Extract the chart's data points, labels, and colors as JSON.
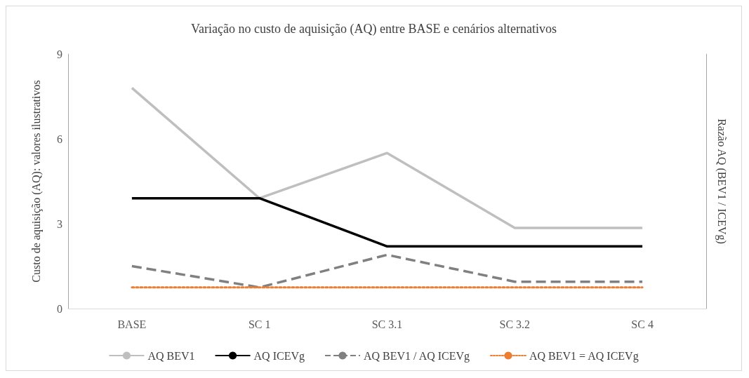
{
  "chart_data": {
    "type": "line",
    "title": "Variação no custo de aquisição (AQ) entre BASE e cenários alternativos",
    "ylabel": "Custo de aquisição (AQ): valores ilustrativos",
    "y2label": "Razão AQ (BEV1 / ICEVg)",
    "categories": [
      "BASE",
      "SC 1",
      "SC 3.1",
      "SC 3.2",
      "SC 4"
    ],
    "series": [
      {
        "name": "AQ BEV1",
        "color": "#bfbfbf",
        "line_style": "solid",
        "values": [
          7.8,
          3.9,
          5.5,
          2.85,
          2.85
        ]
      },
      {
        "name": "AQ ICEVg",
        "color": "#000000",
        "line_style": "solid",
        "values": [
          3.9,
          3.9,
          2.2,
          2.2,
          2.2
        ]
      },
      {
        "name": "AQ BEV1 / AQ ICEVg",
        "color": "#808080",
        "line_style": "dashed",
        "values": [
          1.5,
          0.75,
          1.9,
          0.95,
          0.95
        ]
      },
      {
        "name": "AQ BEV1 = AQ ICEVg",
        "color": "#ed7d31",
        "line_style": "dotted",
        "values": [
          0.75,
          0.75,
          0.75,
          0.75,
          0.75
        ]
      }
    ],
    "ylim": [
      0,
      9
    ],
    "yticks": [
      0,
      3,
      6,
      9
    ],
    "grid": false,
    "legend": "bottom",
    "marker": "none"
  }
}
